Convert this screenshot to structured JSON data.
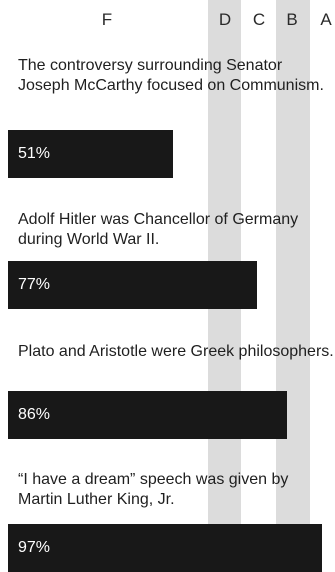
{
  "chart_data": {
    "type": "bar",
    "orientation": "horizontal",
    "grade_columns": [
      "F",
      "D",
      "C",
      "B",
      "A"
    ],
    "categories": [
      "The controversy surrounding Senator Joseph McCarthy focused on Communism.",
      "Adolf Hitler was Chancellor of Germany during World War II.",
      "Plato and Aristotle were Greek philosophers.",
      "“I have a dream” speech was given by Martin Luther King, Jr."
    ],
    "values": [
      51,
      77,
      86,
      97
    ],
    "value_labels": [
      "51%",
      "77%",
      "86%",
      "97%"
    ],
    "xlim": [
      0,
      100
    ],
    "grid": false,
    "colors": {
      "bar": "#181818",
      "band": "#dcdcdc",
      "bar_text": "#ffffff"
    }
  }
}
